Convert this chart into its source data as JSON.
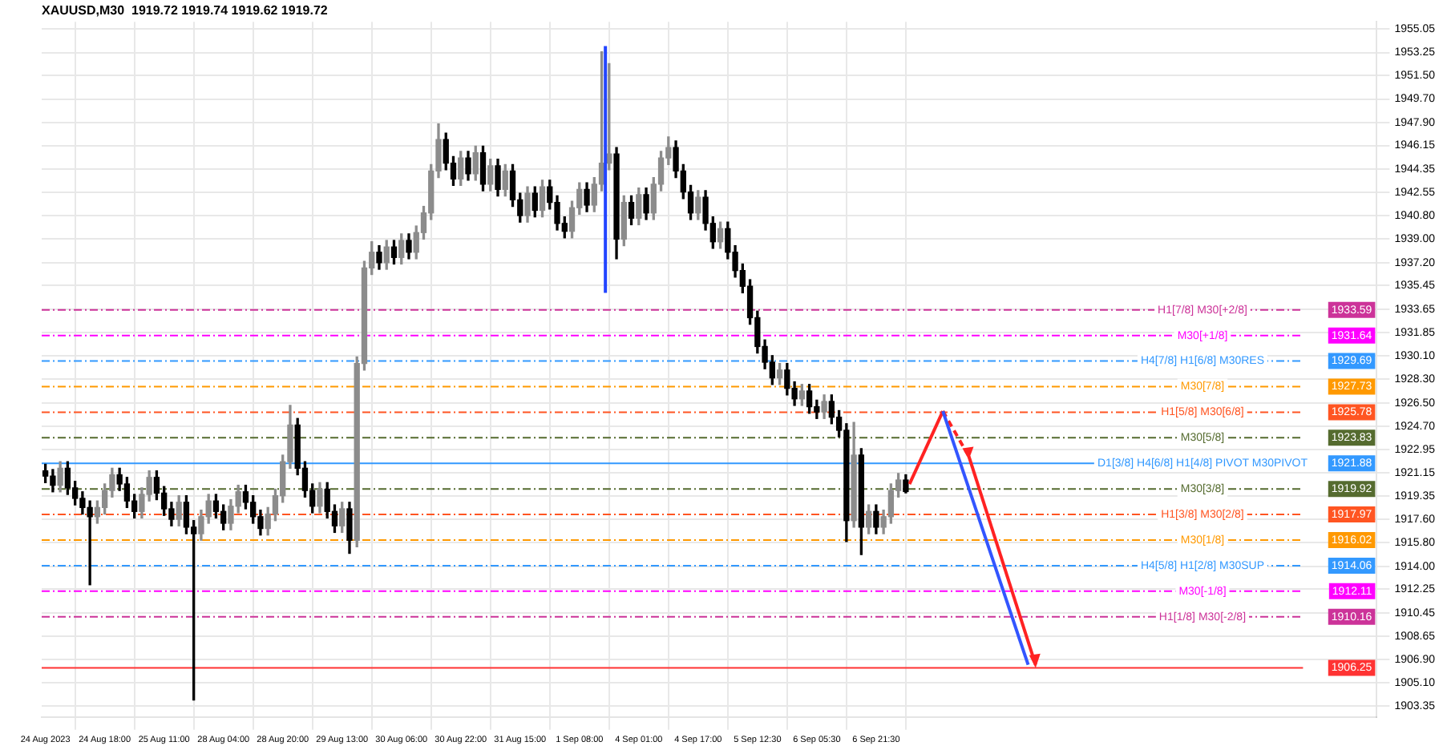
{
  "chart_data": {
    "type": "candlestick",
    "title": "XAUUSD,M30  1919.72 1919.74 1919.62 1919.72",
    "categories": [
      "24 Aug 2023",
      null,
      null,
      null,
      null,
      null,
      null,
      null,
      "24 Aug 18:00",
      null,
      null,
      null,
      null,
      null,
      null,
      null,
      "25 Aug 11:00",
      null,
      null,
      null,
      null,
      null,
      null,
      null,
      "28 Aug 04:00",
      null,
      null,
      null,
      null,
      null,
      null,
      null,
      "28 Aug 20:00",
      null,
      null,
      null,
      null,
      null,
      null,
      null,
      "29 Aug 13:00",
      null,
      null,
      null,
      null,
      null,
      null,
      null,
      "30 Aug 06:00",
      null,
      null,
      null,
      null,
      null,
      null,
      null,
      "30 Aug 22:00",
      null,
      null,
      null,
      null,
      null,
      null,
      null,
      "31 Aug 15:00",
      null,
      null,
      null,
      null,
      null,
      null,
      null,
      "1 Sep 08:00",
      null,
      null,
      null,
      null,
      null,
      null,
      null,
      "4 Sep 01:00",
      null,
      null,
      null,
      null,
      null,
      null,
      null,
      "4 Sep 17:00",
      null,
      null,
      null,
      null,
      null,
      null,
      null,
      "5 Sep 12:30",
      null,
      null,
      null,
      null,
      null,
      null,
      null,
      "6 Sep 05:30",
      null,
      null,
      null,
      null,
      null,
      null,
      null,
      "6 Sep 21:30",
      null,
      null,
      null,
      null,
      null,
      null,
      null,
      null,
      null,
      null,
      null,
      null,
      null,
      null,
      null,
      null,
      null,
      null,
      null,
      null,
      null,
      null,
      null,
      null,
      null,
      null,
      null,
      null,
      null,
      null,
      null,
      null,
      null,
      null,
      null,
      null,
      null,
      null,
      null,
      null,
      null,
      null,
      null,
      null,
      null,
      null,
      null,
      null,
      null,
      null,
      null,
      null,
      null,
      null,
      null,
      null,
      null,
      null,
      null,
      null,
      null,
      null,
      null,
      null,
      null,
      null,
      null
    ],
    "ohlc": [
      [
        1921.3,
        1921.8,
        1920.4,
        1920.9
      ],
      [
        1920.9,
        1921.4,
        1919.7,
        1920.2
      ],
      [
        1920.2,
        1922.0,
        1919.7,
        1921.5
      ],
      [
        1921.5,
        1922.0,
        1919.5,
        1920.0
      ],
      [
        1920.0,
        1920.5,
        1918.7,
        1919.2
      ],
      [
        1919.2,
        1919.7,
        1918.0,
        1918.5
      ],
      [
        1918.5,
        1919.0,
        1912.6,
        1917.8
      ],
      [
        1917.8,
        1919.0,
        1917.3,
        1918.5
      ],
      [
        1918.5,
        1920.3,
        1918.0,
        1919.8
      ],
      [
        1919.8,
        1921.5,
        1919.3,
        1921.0
      ],
      [
        1921.0,
        1921.5,
        1919.8,
        1920.3
      ],
      [
        1920.3,
        1920.8,
        1918.5,
        1919.0
      ],
      [
        1919.0,
        1919.5,
        1917.7,
        1918.2
      ],
      [
        1918.2,
        1920.0,
        1917.7,
        1919.5
      ],
      [
        1919.5,
        1921.3,
        1919.0,
        1920.8
      ],
      [
        1920.8,
        1921.3,
        1919.1,
        1919.6
      ],
      [
        1919.6,
        1920.1,
        1917.9,
        1918.4
      ],
      [
        1918.4,
        1918.9,
        1917.1,
        1917.6
      ],
      [
        1917.6,
        1919.4,
        1917.1,
        1918.9
      ],
      [
        1918.9,
        1919.4,
        1916.5,
        1917.0
      ],
      [
        1917.0,
        1917.5,
        1903.8,
        1916.5
      ],
      [
        1916.5,
        1918.3,
        1916.0,
        1917.8
      ],
      [
        1917.8,
        1919.5,
        1917.3,
        1919.0
      ],
      [
        1919.0,
        1919.5,
        1917.7,
        1918.2
      ],
      [
        1918.2,
        1918.7,
        1916.8,
        1917.3
      ],
      [
        1917.3,
        1919.1,
        1916.8,
        1918.6
      ],
      [
        1918.6,
        1920.2,
        1918.1,
        1919.7
      ],
      [
        1919.7,
        1920.2,
        1918.4,
        1918.9
      ],
      [
        1918.9,
        1919.4,
        1917.3,
        1917.8
      ],
      [
        1917.8,
        1918.3,
        1916.4,
        1916.9
      ],
      [
        1916.9,
        1918.5,
        1916.4,
        1918.0
      ],
      [
        1918.0,
        1919.9,
        1917.5,
        1919.4
      ],
      [
        1919.4,
        1922.5,
        1918.9,
        1922.0
      ],
      [
        1922.0,
        1926.3,
        1921.5,
        1924.8
      ],
      [
        1924.8,
        1925.3,
        1921.0,
        1921.5
      ],
      [
        1921.5,
        1922.0,
        1919.3,
        1919.8
      ],
      [
        1919.8,
        1920.3,
        1918.1,
        1918.6
      ],
      [
        1918.6,
        1920.4,
        1918.1,
        1919.9
      ],
      [
        1919.9,
        1920.4,
        1917.7,
        1918.2
      ],
      [
        1918.2,
        1918.7,
        1916.6,
        1917.1
      ],
      [
        1917.1,
        1918.9,
        1916.6,
        1918.4
      ],
      [
        1918.4,
        1918.9,
        1915.0,
        1916.0
      ],
      [
        1916.0,
        1930.0,
        1915.5,
        1929.5
      ],
      [
        1929.5,
        1937.3,
        1929.0,
        1936.8
      ],
      [
        1936.8,
        1938.8,
        1936.3,
        1938.0
      ],
      [
        1938.0,
        1938.5,
        1936.7,
        1937.2
      ],
      [
        1937.2,
        1938.9,
        1936.7,
        1938.4
      ],
      [
        1938.4,
        1938.9,
        1937.1,
        1937.6
      ],
      [
        1937.6,
        1939.4,
        1937.1,
        1938.9
      ],
      [
        1938.9,
        1939.4,
        1937.5,
        1938.0
      ],
      [
        1938.0,
        1940.0,
        1937.5,
        1939.5
      ],
      [
        1939.5,
        1941.5,
        1939.0,
        1941.0
      ],
      [
        1941.0,
        1944.7,
        1940.5,
        1944.2
      ],
      [
        1944.2,
        1947.8,
        1943.7,
        1946.6
      ],
      [
        1946.6,
        1947.1,
        1944.3,
        1944.8
      ],
      [
        1944.8,
        1945.3,
        1943.1,
        1943.6
      ],
      [
        1943.6,
        1945.7,
        1943.1,
        1945.2
      ],
      [
        1945.2,
        1945.7,
        1943.5,
        1944.0
      ],
      [
        1944.0,
        1946.1,
        1943.5,
        1945.6
      ],
      [
        1945.6,
        1946.1,
        1942.7,
        1943.2
      ],
      [
        1943.2,
        1945.1,
        1942.7,
        1944.6
      ],
      [
        1944.6,
        1945.1,
        1942.3,
        1942.8
      ],
      [
        1942.8,
        1944.7,
        1942.3,
        1944.2
      ],
      [
        1944.2,
        1944.7,
        1941.5,
        1942.0
      ],
      [
        1942.0,
        1942.5,
        1940.3,
        1940.8
      ],
      [
        1940.8,
        1943.0,
        1940.3,
        1942.5
      ],
      [
        1942.5,
        1943.0,
        1940.7,
        1941.2
      ],
      [
        1941.2,
        1943.5,
        1940.7,
        1943.0
      ],
      [
        1943.0,
        1943.5,
        1941.3,
        1941.8
      ],
      [
        1941.8,
        1942.3,
        1939.7,
        1940.2
      ],
      [
        1940.2,
        1940.7,
        1939.1,
        1939.6
      ],
      [
        1939.6,
        1941.9,
        1939.1,
        1941.4
      ],
      [
        1941.4,
        1943.3,
        1940.9,
        1942.8
      ],
      [
        1942.8,
        1943.3,
        1941.1,
        1941.6
      ],
      [
        1941.6,
        1943.7,
        1941.1,
        1943.2
      ],
      [
        1943.2,
        1953.3,
        1942.7,
        1944.8
      ],
      [
        1944.8,
        1952.4,
        1944.3,
        1945.5
      ],
      [
        1945.5,
        1946.0,
        1937.5,
        1939.0
      ],
      [
        1939.0,
        1942.3,
        1938.5,
        1941.8
      ],
      [
        1941.8,
        1942.3,
        1940.1,
        1940.6
      ],
      [
        1940.6,
        1942.9,
        1940.1,
        1942.4
      ],
      [
        1942.4,
        1942.9,
        1940.5,
        1941.0
      ],
      [
        1941.0,
        1943.7,
        1940.5,
        1943.2
      ],
      [
        1943.2,
        1945.7,
        1942.7,
        1945.2
      ],
      [
        1945.2,
        1946.8,
        1944.7,
        1946.0
      ],
      [
        1946.0,
        1946.5,
        1943.7,
        1944.2
      ],
      [
        1944.2,
        1944.7,
        1942.1,
        1942.6
      ],
      [
        1942.6,
        1943.1,
        1940.5,
        1941.0
      ],
      [
        1941.0,
        1942.7,
        1940.5,
        1942.2
      ],
      [
        1942.2,
        1942.7,
        1939.7,
        1940.2
      ],
      [
        1940.2,
        1940.7,
        1938.3,
        1938.8
      ],
      [
        1938.8,
        1940.3,
        1938.3,
        1939.8
      ],
      [
        1939.8,
        1940.3,
        1937.5,
        1938.0
      ],
      [
        1938.0,
        1938.5,
        1936.1,
        1936.6
      ],
      [
        1936.6,
        1937.1,
        1934.9,
        1935.4
      ],
      [
        1935.4,
        1935.9,
        1932.5,
        1933.0
      ],
      [
        1933.0,
        1933.5,
        1930.3,
        1930.8
      ],
      [
        1930.8,
        1931.3,
        1929.1,
        1929.6
      ],
      [
        1929.6,
        1930.1,
        1927.9,
        1928.4
      ],
      [
        1928.4,
        1929.5,
        1927.9,
        1929.0
      ],
      [
        1929.0,
        1929.5,
        1927.1,
        1927.6
      ],
      [
        1927.6,
        1928.1,
        1926.3,
        1926.8
      ],
      [
        1926.8,
        1927.9,
        1926.3,
        1927.4
      ],
      [
        1927.4,
        1927.9,
        1925.7,
        1926.2
      ],
      [
        1926.2,
        1926.7,
        1925.3,
        1925.8
      ],
      [
        1925.8,
        1927.1,
        1925.3,
        1926.6
      ],
      [
        1926.6,
        1927.1,
        1924.9,
        1925.4
      ],
      [
        1925.4,
        1925.9,
        1923.9,
        1924.4
      ],
      [
        1924.4,
        1924.9,
        1915.9,
        1917.5
      ],
      [
        1917.5,
        1925.0,
        1917.0,
        1922.5
      ],
      [
        1922.5,
        1923.0,
        1914.9,
        1917.0
      ],
      [
        1917.0,
        1918.7,
        1916.5,
        1918.2
      ],
      [
        1918.2,
        1918.7,
        1916.5,
        1917.0
      ],
      [
        1917.0,
        1918.3,
        1916.5,
        1917.8
      ],
      [
        1917.8,
        1920.3,
        1917.3,
        1919.8
      ],
      [
        1919.8,
        1921.1,
        1919.3,
        1920.6
      ],
      [
        1920.6,
        1921.0,
        1919.62,
        1919.72
      ],
      null,
      null,
      null,
      null,
      null,
      null,
      null,
      null,
      null,
      null,
      null,
      null,
      null,
      null,
      null,
      null,
      null,
      null,
      null,
      null,
      null,
      null,
      null,
      null,
      null,
      null,
      null,
      null,
      null,
      null,
      null,
      null,
      null,
      null,
      null,
      null,
      null,
      null,
      null,
      null,
      null,
      null,
      null,
      null,
      null,
      null,
      null,
      null,
      null,
      null,
      null,
      null,
      null,
      null,
      null,
      null,
      null,
      null,
      null,
      null,
      null,
      null,
      null
    ],
    "ylim": [
      1902.5,
      1955.6
    ],
    "yticks": [
      1955.05,
      1953.25,
      {
        "value": 1951.5,
        "label": "1951.50"
      },
      {
        "value": 1949.7,
        "label": "1949.70"
      },
      {
        "value": 1947.9,
        "label": "1947.90"
      },
      1946.15,
      1944.35,
      1942.55,
      {
        "value": 1940.8,
        "label": "1940.80"
      },
      {
        "value": 1939,
        "label": "1939.00"
      },
      {
        "value": 1937.2,
        "label": "1937.20"
      },
      1935.45,
      1933.65,
      1931.85,
      {
        "value": 1930.1,
        "label": "1930.10"
      },
      {
        "value": 1928.3,
        "label": "1928.30"
      },
      {
        "value": 1926.5,
        "label": "1926.50"
      },
      {
        "value": 1924.7,
        "label": "1924.70"
      },
      1922.95,
      1921.15,
      1919.35,
      {
        "value": 1917.6,
        "label": "1917.60"
      },
      {
        "value": 1915.8,
        "label": "1915.80"
      },
      {
        "value": 1914,
        "label": "1914.00"
      },
      1912.25,
      1910.45,
      1908.65,
      {
        "value": 1906.9,
        "label": "1906.90"
      },
      {
        "value": 1905.1,
        "label": "1905.10"
      },
      1903.35
    ],
    "annotations": [
      {
        "text": "1933.59",
        "y": 1933.59
      },
      {
        "text": "1931.64",
        "y": 1931.64
      },
      {
        "text": "1929.69",
        "y": 1929.69
      },
      {
        "text": "1927.73",
        "y": 1927.73
      },
      {
        "text": "1925.78",
        "y": 1925.78
      },
      {
        "text": "1923.83",
        "y": 1923.83
      },
      {
        "text": "1921.88",
        "y": 1921.88
      },
      {
        "text": "1919.92",
        "y": 1919.92
      },
      {
        "text": "1917.97",
        "y": 1917.97
      },
      {
        "text": "1916.02",
        "y": 1916.02
      },
      {
        "text": "1914.06",
        "y": 1914.06
      },
      {
        "text": "1912.11",
        "y": 1912.11
      },
      {
        "text": "1910.16",
        "y": 1910.16
      },
      {
        "text": "1906.25",
        "y": 1906.25
      }
    ],
    "grid": true,
    "ref_lines": [
      {
        "axis": "y",
        "value": 1933.59,
        "label": "H1[7/8] M30[+2/8]",
        "color": "#cc3399",
        "line_style": "dashed"
      },
      {
        "axis": "y",
        "value": 1931.64,
        "label": "M30[+1/8]",
        "color": "#ff00ff",
        "line_style": "dashed"
      },
      {
        "axis": "y",
        "value": 1929.69,
        "label": "H4[7/8] H1[6/8] M30RES",
        "color": "#3399ff",
        "line_style": "dashed"
      },
      {
        "axis": "y",
        "value": 1927.73,
        "label": "M30[7/8]",
        "color": "#ff9900",
        "line_style": "dashed"
      },
      {
        "axis": "y",
        "value": 1925.78,
        "label": "H1[5/8] M30[6/8]",
        "color": "#ff5522",
        "line_style": "dashed"
      },
      {
        "axis": "y",
        "value": 1923.83,
        "label": "M30[5/8]",
        "color": "#556b2f",
        "line_style": "dashed"
      },
      {
        "axis": "y",
        "value": 1921.88,
        "label": "D1[3/8] H4[6/8] H1[4/8] PIVOT M30PIVOT",
        "color": "#3399ff",
        "line_style": "solid"
      },
      {
        "axis": "y",
        "value": 1919.92,
        "label": "M30[3/8]",
        "color": "#556b2f",
        "line_style": "dashed"
      },
      {
        "axis": "y",
        "value": 1917.97,
        "label": "H1[3/8] M30[2/8]",
        "color": "#ff5522",
        "line_style": "dashed"
      },
      {
        "axis": "y",
        "value": 1916.02,
        "label": "M30[1/8]",
        "color": "#ff9900",
        "line_style": "dashed"
      },
      {
        "axis": "y",
        "value": 1914.06,
        "label": "H4[5/8] H1[2/8] M30SUP",
        "color": "#3399ff",
        "line_style": "dashed"
      },
      {
        "axis": "y",
        "value": 1912.11,
        "label": "M30[-1/8]",
        "color": "#ff00ff",
        "line_style": "dashed"
      },
      {
        "axis": "y",
        "value": 1910.16,
        "label": "H1[1/8] M30[-2/8]",
        "color": "#cc3399",
        "line_style": "dashed"
      },
      {
        "axis": "y",
        "value": 1906.25,
        "label": null,
        "color": "#ff3333",
        "line_style": "solid"
      }
    ]
  }
}
